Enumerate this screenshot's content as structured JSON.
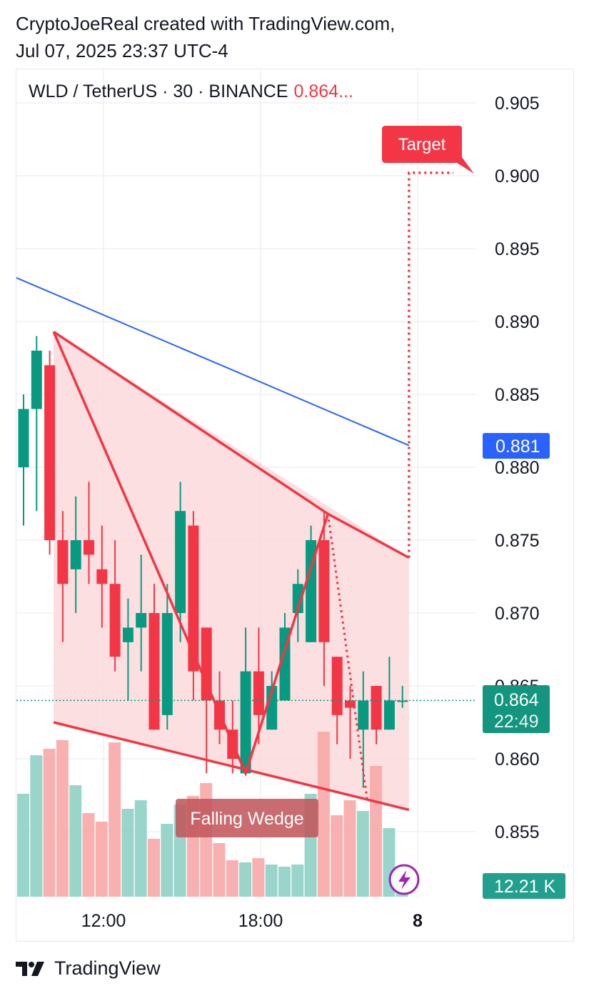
{
  "header": {
    "line1": "CryptoJoeReal created with TradingView.com,",
    "line2": "Jul 07, 2025 23:37 UTC-4"
  },
  "legend": {
    "symbol": "WLD / TetherUS · 30 · BINANCE",
    "price": "0.864..."
  },
  "price_axis": [
    "0.905",
    "0.900",
    "0.895",
    "0.890",
    "0.885",
    "0.880",
    "0.875",
    "0.870",
    "0.865",
    "0.860",
    "0.855"
  ],
  "time_axis": [
    "12:00",
    "18:00",
    "8"
  ],
  "tags": {
    "ma_value": "0.881",
    "last_price": "0.864",
    "countdown": "22:49",
    "volume": "12.21 K"
  },
  "annotations": {
    "target": "Target",
    "pattern": "Falling Wedge"
  },
  "footer": {
    "brand": "TradingView"
  },
  "colors": {
    "up": "#089981",
    "down": "#f23645",
    "volume_up": "#8fd0c6",
    "volume_down": "#f7a9a7",
    "ma_line": "#2962ff",
    "wedge_fill": "#fbd9db"
  },
  "chart_data": {
    "type": "candlestick",
    "interval": "30",
    "ylim": [
      0.8525,
      0.9075
    ],
    "candles": [
      {
        "o": 0.88,
        "h": 0.885,
        "l": 0.876,
        "c": 0.884
      },
      {
        "o": 0.884,
        "h": 0.889,
        "l": 0.877,
        "c": 0.888
      },
      {
        "o": 0.887,
        "h": 0.888,
        "l": 0.874,
        "c": 0.875
      },
      {
        "o": 0.875,
        "h": 0.877,
        "l": 0.868,
        "c": 0.872
      },
      {
        "o": 0.873,
        "h": 0.878,
        "l": 0.87,
        "c": 0.875
      },
      {
        "o": 0.875,
        "h": 0.879,
        "l": 0.872,
        "c": 0.874
      },
      {
        "o": 0.873,
        "h": 0.876,
        "l": 0.869,
        "c": 0.872
      },
      {
        "o": 0.872,
        "h": 0.875,
        "l": 0.866,
        "c": 0.867
      },
      {
        "o": 0.868,
        "h": 0.871,
        "l": 0.864,
        "c": 0.869
      },
      {
        "o": 0.869,
        "h": 0.874,
        "l": 0.866,
        "c": 0.87
      },
      {
        "o": 0.87,
        "h": 0.872,
        "l": 0.862,
        "c": 0.862
      },
      {
        "o": 0.863,
        "h": 0.872,
        "l": 0.862,
        "c": 0.87
      },
      {
        "o": 0.87,
        "h": 0.879,
        "l": 0.868,
        "c": 0.877
      },
      {
        "o": 0.876,
        "h": 0.877,
        "l": 0.864,
        "c": 0.866
      },
      {
        "o": 0.869,
        "h": 0.869,
        "l": 0.859,
        "c": 0.864
      },
      {
        "o": 0.864,
        "h": 0.866,
        "l": 0.861,
        "c": 0.862
      },
      {
        "o": 0.862,
        "h": 0.864,
        "l": 0.859,
        "c": 0.86
      },
      {
        "o": 0.859,
        "h": 0.869,
        "l": 0.859,
        "c": 0.866
      },
      {
        "o": 0.866,
        "h": 0.869,
        "l": 0.861,
        "c": 0.863
      },
      {
        "o": 0.862,
        "h": 0.866,
        "l": 0.862,
        "c": 0.865
      },
      {
        "o": 0.864,
        "h": 0.87,
        "l": 0.864,
        "c": 0.869
      },
      {
        "o": 0.87,
        "h": 0.873,
        "l": 0.868,
        "c": 0.872
      },
      {
        "o": 0.868,
        "h": 0.876,
        "l": 0.868,
        "c": 0.875
      },
      {
        "o": 0.875,
        "h": 0.877,
        "l": 0.865,
        "c": 0.868
      },
      {
        "o": 0.867,
        "h": 0.867,
        "l": 0.861,
        "c": 0.863
      },
      {
        "o": 0.864,
        "h": 0.865,
        "l": 0.86,
        "c": 0.8635
      },
      {
        "o": 0.862,
        "h": 0.866,
        "l": 0.858,
        "c": 0.864
      },
      {
        "o": 0.865,
        "h": 0.865,
        "l": 0.861,
        "c": 0.862
      },
      {
        "o": 0.862,
        "h": 0.867,
        "l": 0.862,
        "c": 0.864
      },
      {
        "o": 0.864,
        "h": 0.865,
        "l": 0.8635,
        "c": 0.864
      }
    ],
    "volume_relative": [
      0.48,
      0.66,
      0.69,
      0.73,
      0.52,
      0.39,
      0.35,
      0.72,
      0.41,
      0.45,
      0.27,
      0.34,
      0.43,
      0.47,
      0.53,
      0.25,
      0.17,
      0.16,
      0.18,
      0.15,
      0.14,
      0.15,
      0.48,
      0.77,
      0.38,
      0.45,
      0.4,
      0.61,
      0.32,
      0.05
    ],
    "moving_average": {
      "x_start": 0,
      "value_start": 0.893,
      "x_end": 30,
      "value_end": 0.8815,
      "label": "0.881"
    },
    "wedge": {
      "upper": [
        {
          "i": 2.3,
          "p": 0.8893
        },
        {
          "i": 23.3,
          "p": 0.8768
        },
        {
          "i": 29.5,
          "p": 0.8738
        }
      ],
      "lower": [
        {
          "i": 2.3,
          "p": 0.8625
        },
        {
          "i": 29.5,
          "p": 0.8565
        }
      ],
      "zigzag": [
        {
          "i": 2.3,
          "p": 0.8893
        },
        {
          "i": 17,
          "p": 0.859
        },
        {
          "i": 23.3,
          "p": 0.8768
        },
        {
          "i": 26.3,
          "p": 0.8572
        }
      ]
    },
    "target_path": [
      {
        "i": 29.5,
        "p": 0.8738
      },
      {
        "i": 29.5,
        "p": 0.9002
      },
      {
        "i": 32.9,
        "p": 0.9002
      }
    ],
    "target_price": 0.9,
    "last_price": 0.864
  }
}
